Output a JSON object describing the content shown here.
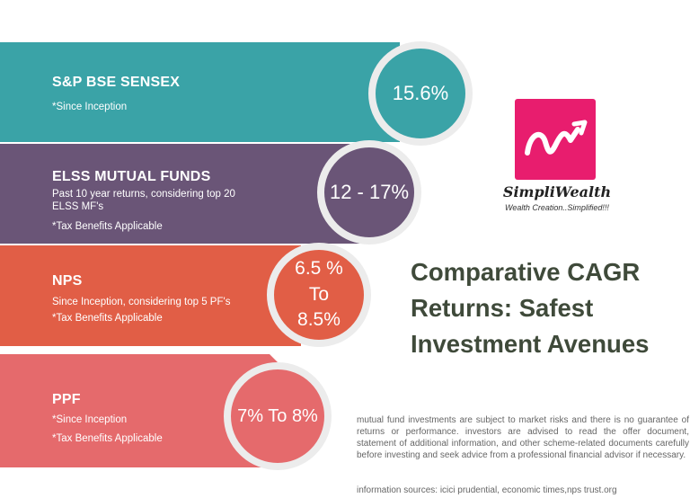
{
  "bands": [
    {
      "title": "S&P BSE SENSEX",
      "lines": [
        "*Since Inception"
      ],
      "value": "15.6%"
    },
    {
      "title": "ELSS MUTUAL FUNDS",
      "lines": [
        "Past 10 year returns, considering top 20",
        "ELSS MF's",
        "*Tax Benefits Applicable"
      ],
      "value": "12 - 17%"
    },
    {
      "title": "NPS",
      "lines": [
        "Since Inception, considering top 5 PF's",
        "*Tax Benefits Applicable"
      ],
      "value_lines": [
        "6.5 %",
        "To",
        "8.5%"
      ]
    },
    {
      "title": "PPF",
      "lines": [
        "*Since Inception",
        "*Tax Benefits Applicable"
      ],
      "value": "7% To 8%"
    }
  ],
  "logo": {
    "name": "SimpliWealth",
    "tagline": "Wealth Creation..Simplified!!!"
  },
  "title_lines": [
    "Comparative CAGR",
    "Returns: Safest",
    "Investment Avenues"
  ],
  "disclaimer": "mutual fund investments are subject to market risks and there is no guarantee of returns or performance. investors are advised to read the offer document, statement of additional information, and other scheme-related documents carefully before investing and seek advice from a professional financial advisor if necessary.",
  "sources": "information sources: icici prudential, economic times,nps trust.org",
  "colors": {
    "teal": "#3aa3a7",
    "purple": "#6a5577",
    "orange": "#e15e46",
    "pink": "#e56a6c",
    "brand": "#e81d6e",
    "title": "#3f4a3a"
  }
}
